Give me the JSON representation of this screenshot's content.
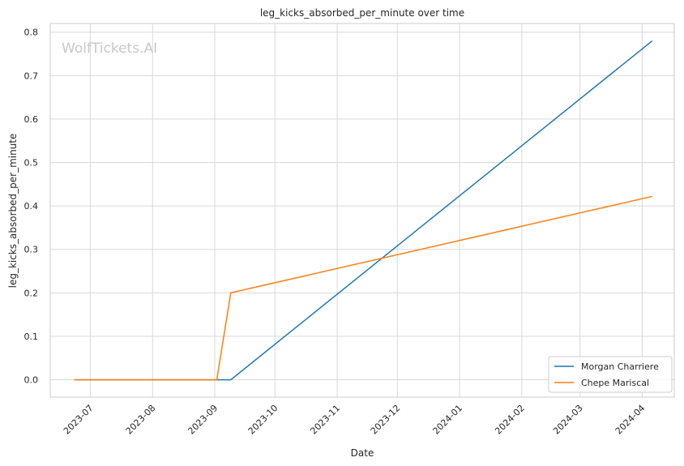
{
  "chart_data": {
    "type": "line",
    "title": "leg_kicks_absorbed_per_minute over time",
    "xlabel": "Date",
    "ylabel": "leg_kicks_absorbed_per_minute",
    "watermark": "WolfTickets.AI",
    "x_ticks": [
      "2023-07",
      "2023-08",
      "2023-09",
      "2023-10",
      "2023-11",
      "2023-12",
      "2024-01",
      "2024-02",
      "2024-03",
      "2024-04"
    ],
    "y_ticks": [
      "0.0",
      "0.1",
      "0.2",
      "0.3",
      "0.4",
      "0.5",
      "0.6",
      "0.7",
      "0.8"
    ],
    "xlim": [
      "2023-06-11",
      "2024-04-17"
    ],
    "ylim": [
      -0.04,
      0.82
    ],
    "grid": true,
    "legend_position": "lower-right",
    "series": [
      {
        "name": "Morgan Charriere",
        "color": "#1f77b4",
        "points": [
          {
            "x": "2023-06-23",
            "y": 0.0
          },
          {
            "x": "2023-09-02",
            "y": 0.0
          },
          {
            "x": "2023-09-09",
            "y": 0.0
          },
          {
            "x": "2024-04-06",
            "y": 0.78
          }
        ]
      },
      {
        "name": "Chepe Mariscal",
        "color": "#ff7f0e",
        "points": [
          {
            "x": "2023-06-23",
            "y": 0.0
          },
          {
            "x": "2023-09-02",
            "y": 0.0
          },
          {
            "x": "2023-09-09",
            "y": 0.2
          },
          {
            "x": "2024-04-06",
            "y": 0.422
          }
        ]
      }
    ]
  }
}
